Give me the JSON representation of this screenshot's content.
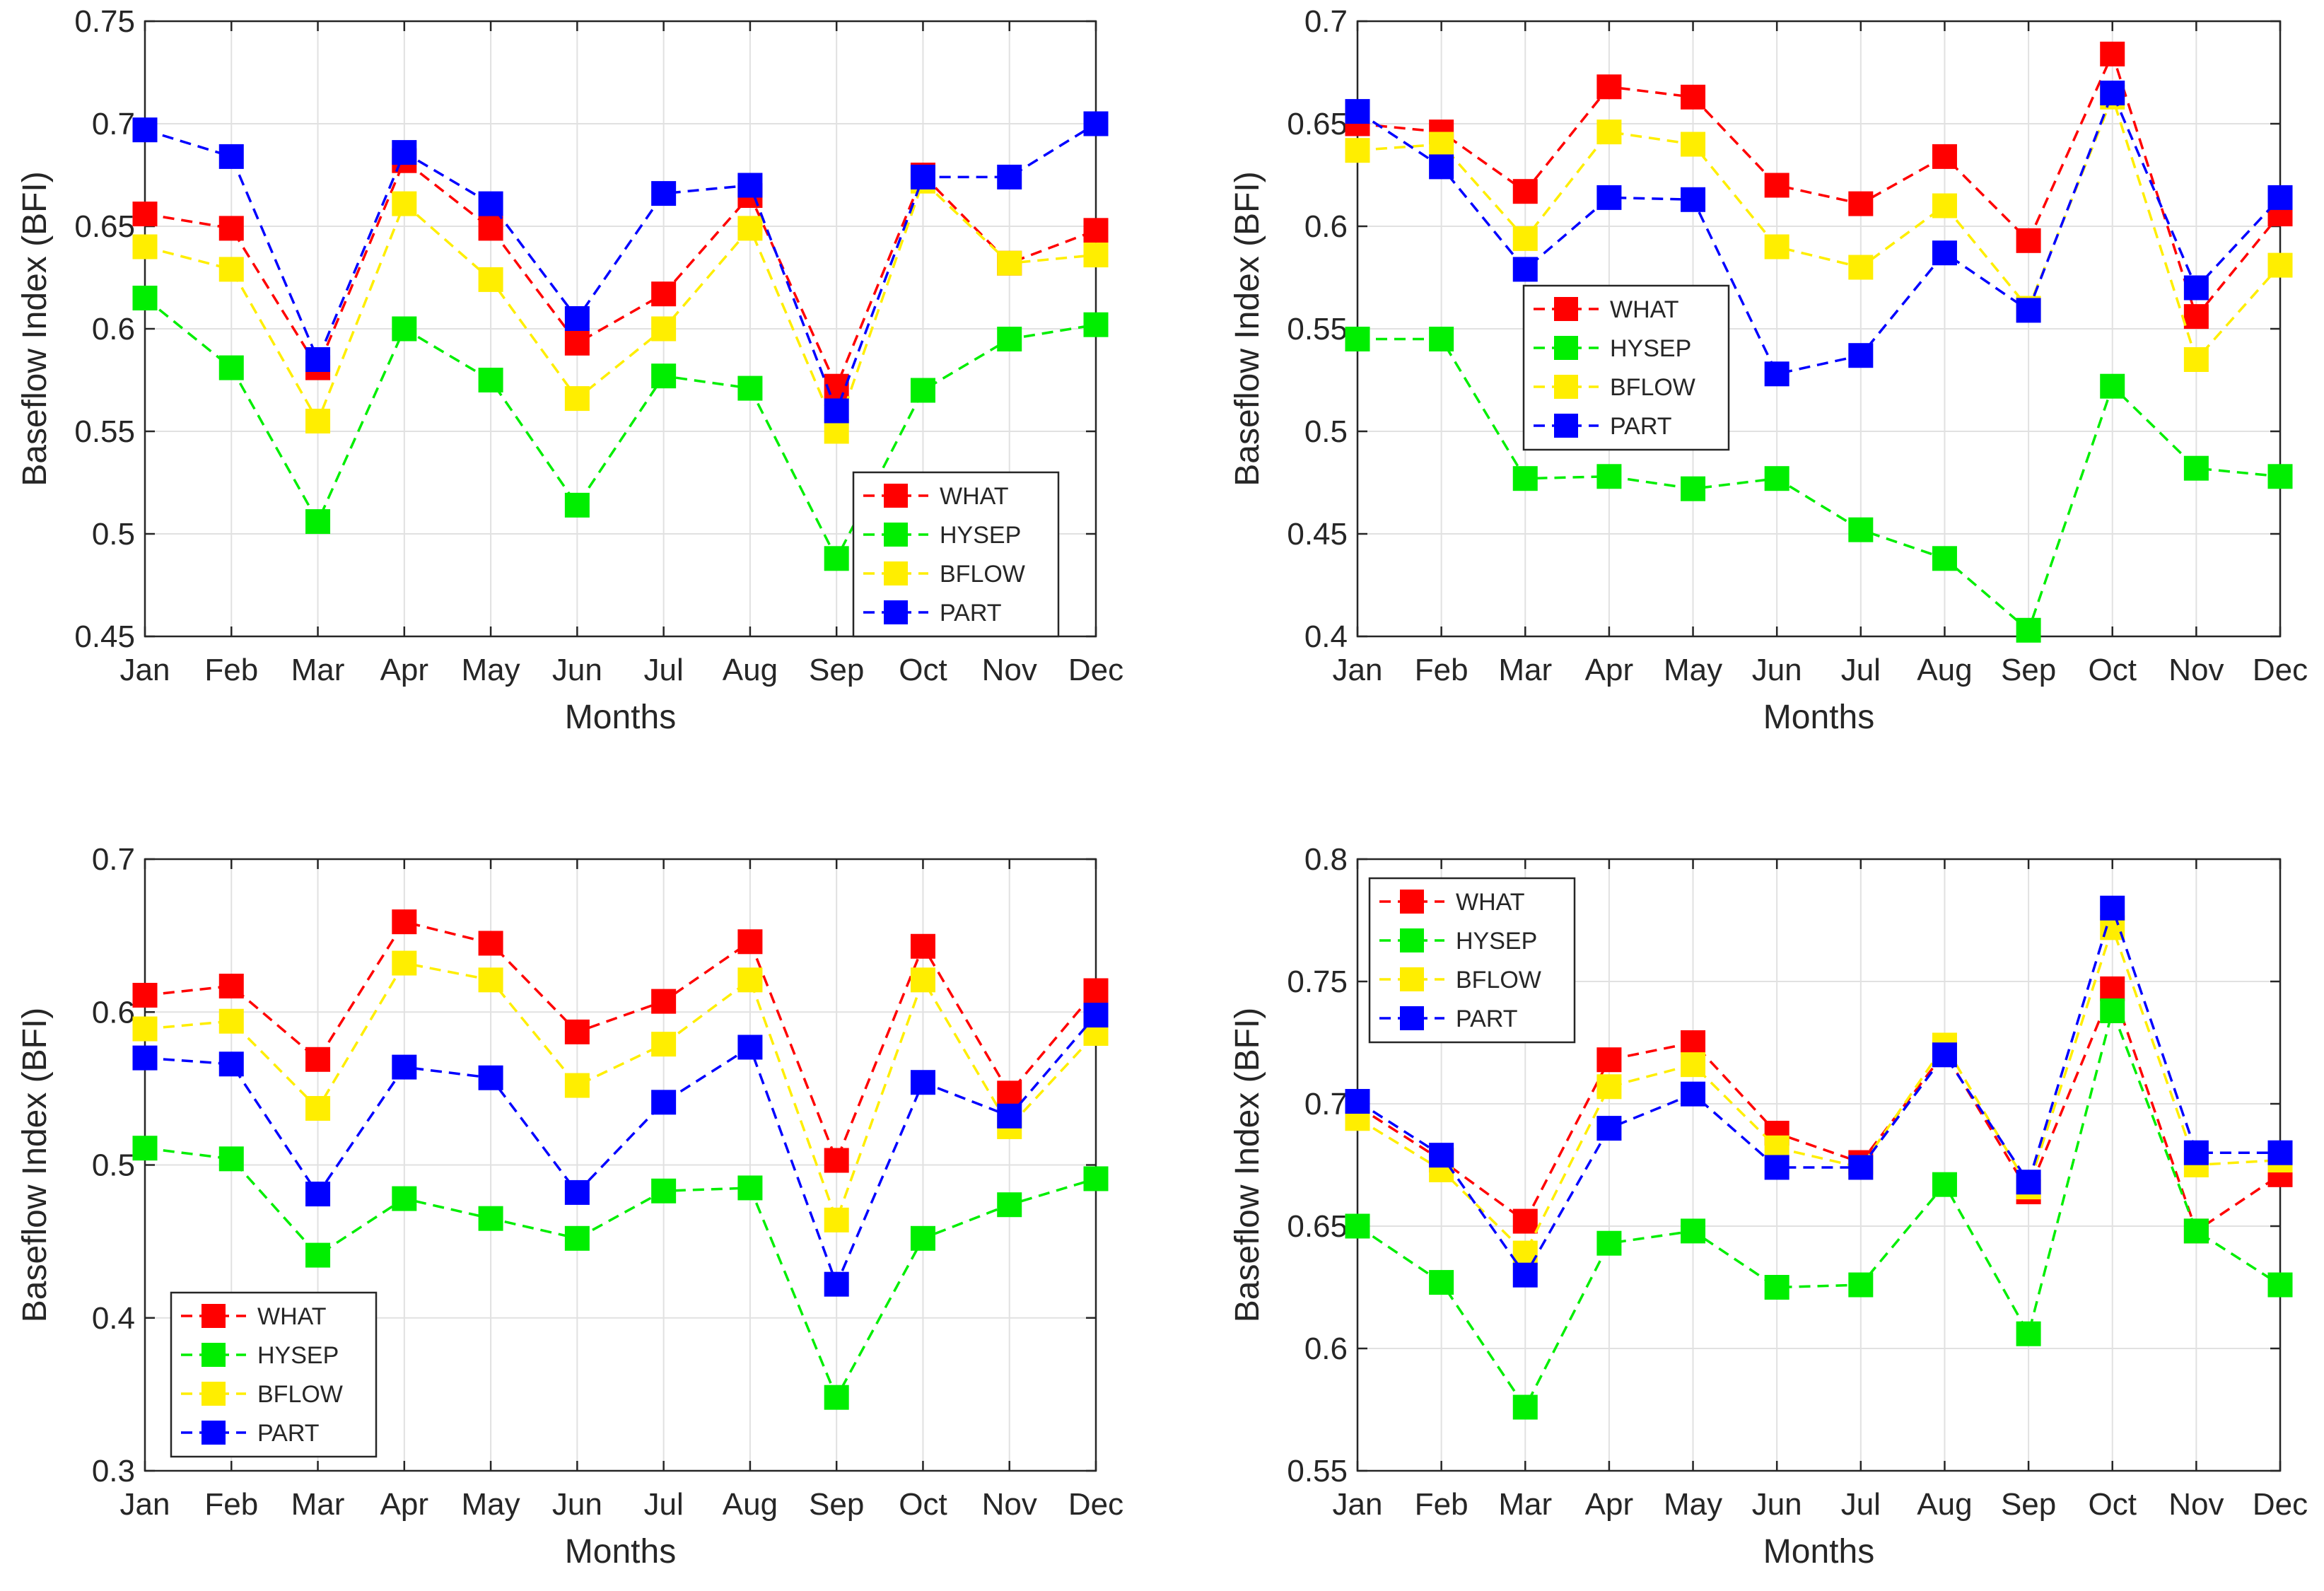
{
  "figure": {
    "legend_order": [
      "WHAT",
      "HYSEP",
      "BFLOW",
      "PART"
    ]
  },
  "chart_data": [
    {
      "type": "line",
      "panel": "top-left",
      "title": "",
      "xlabel": "Months",
      "ylabel": "Baseflow Index (BFI)",
      "categories": [
        "Jan",
        "Feb",
        "Mar",
        "Apr",
        "May",
        "Jun",
        "Jul",
        "Aug",
        "Sep",
        "Oct",
        "Nov",
        "Dec"
      ],
      "ylim": [
        0.45,
        0.75
      ],
      "yticks": [
        0.45,
        0.5,
        0.55,
        0.6,
        0.65,
        0.7,
        0.75
      ],
      "ytick_labels": [
        "0.45",
        "0.5",
        "0.55",
        "0.6",
        "0.65",
        "0.7",
        "0.75"
      ],
      "grid": true,
      "legend_position": "lower-right",
      "series": [
        {
          "name": "WHAT",
          "color": "#ff0000",
          "values": [
            0.656,
            0.649,
            0.581,
            0.682,
            0.649,
            0.593,
            0.617,
            0.665,
            0.572,
            0.675,
            0.632,
            0.648
          ]
        },
        {
          "name": "HYSEP",
          "color": "#00ee00",
          "values": [
            0.615,
            0.581,
            0.506,
            0.6,
            0.575,
            0.514,
            0.577,
            0.571,
            0.488,
            0.57,
            0.595,
            0.602
          ]
        },
        {
          "name": "BFLOW",
          "color": "#ffee00",
          "values": [
            0.64,
            0.629,
            0.555,
            0.661,
            0.624,
            0.566,
            0.6,
            0.649,
            0.55,
            0.672,
            0.632,
            0.636
          ]
        },
        {
          "name": "PART",
          "color": "#0000ff",
          "values": [
            0.697,
            0.684,
            0.585,
            0.686,
            0.661,
            0.605,
            0.666,
            0.67,
            0.56,
            0.674,
            0.674,
            0.7
          ]
        }
      ]
    },
    {
      "type": "line",
      "panel": "top-right",
      "title": "",
      "xlabel": "Months",
      "ylabel": "Baseflow Index (BFI)",
      "categories": [
        "Jan",
        "Feb",
        "Mar",
        "Apr",
        "May",
        "Jun",
        "Jul",
        "Aug",
        "Sep",
        "Oct",
        "Nov",
        "Dec"
      ],
      "ylim": [
        0.4,
        0.7
      ],
      "yticks": [
        0.4,
        0.45,
        0.5,
        0.55,
        0.6,
        0.65,
        0.7
      ],
      "ytick_labels": [
        "0.4",
        "0.45",
        "0.5",
        "0.55",
        "0.6",
        "0.65",
        "0.7"
      ],
      "grid": true,
      "legend_position": "middle-left",
      "series": [
        {
          "name": "WHAT",
          "color": "#ff0000",
          "values": [
            0.65,
            0.646,
            0.617,
            0.668,
            0.663,
            0.62,
            0.611,
            0.634,
            0.593,
            0.684,
            0.556,
            0.606
          ]
        },
        {
          "name": "HYSEP",
          "color": "#00ee00",
          "values": [
            0.545,
            0.545,
            0.477,
            0.478,
            0.472,
            0.477,
            0.452,
            0.438,
            0.403,
            0.522,
            0.482,
            0.478
          ]
        },
        {
          "name": "BFLOW",
          "color": "#ffee00",
          "values": [
            0.637,
            0.64,
            0.594,
            0.646,
            0.64,
            0.59,
            0.58,
            0.61,
            0.56,
            0.663,
            0.535,
            0.581
          ]
        },
        {
          "name": "PART",
          "color": "#0000ff",
          "values": [
            0.656,
            0.629,
            0.579,
            0.614,
            0.613,
            0.528,
            0.537,
            0.587,
            0.559,
            0.665,
            0.57,
            0.614
          ]
        }
      ]
    },
    {
      "type": "line",
      "panel": "bottom-left",
      "title": "",
      "xlabel": "Months",
      "ylabel": "Baseflow Index (BFI)",
      "categories": [
        "Jan",
        "Feb",
        "Mar",
        "Apr",
        "May",
        "Jun",
        "Jul",
        "Aug",
        "Sep",
        "Oct",
        "Nov",
        "Dec"
      ],
      "ylim": [
        0.3,
        0.7
      ],
      "yticks": [
        0.3,
        0.4,
        0.5,
        0.6,
        0.7
      ],
      "ytick_labels": [
        "0.3",
        "0.4",
        "0.5",
        "0.6",
        "0.7"
      ],
      "grid": true,
      "legend_position": "lower-left",
      "series": [
        {
          "name": "WHAT",
          "color": "#ff0000",
          "values": [
            0.611,
            0.617,
            0.569,
            0.659,
            0.645,
            0.587,
            0.607,
            0.646,
            0.503,
            0.643,
            0.547,
            0.614
          ]
        },
        {
          "name": "HYSEP",
          "color": "#00ee00",
          "values": [
            0.511,
            0.504,
            0.441,
            0.478,
            0.465,
            0.452,
            0.483,
            0.485,
            0.348,
            0.452,
            0.474,
            0.491
          ]
        },
        {
          "name": "BFLOW",
          "color": "#ffee00",
          "values": [
            0.589,
            0.594,
            0.537,
            0.632,
            0.621,
            0.552,
            0.579,
            0.621,
            0.464,
            0.621,
            0.525,
            0.586
          ]
        },
        {
          "name": "PART",
          "color": "#0000ff",
          "values": [
            0.57,
            0.566,
            0.481,
            0.564,
            0.557,
            0.482,
            0.541,
            0.577,
            0.422,
            0.554,
            0.532,
            0.598
          ]
        }
      ]
    },
    {
      "type": "line",
      "panel": "bottom-right",
      "title": "",
      "xlabel": "Months",
      "ylabel": "Baseflow Index (BFI)",
      "categories": [
        "Jan",
        "Feb",
        "Mar",
        "Apr",
        "May",
        "Jun",
        "Jul",
        "Aug",
        "Sep",
        "Oct",
        "Nov",
        "Dec"
      ],
      "ylim": [
        0.55,
        0.8
      ],
      "yticks": [
        0.55,
        0.6,
        0.65,
        0.7,
        0.75,
        0.8
      ],
      "ytick_labels": [
        "0.55",
        "0.6",
        "0.65",
        "0.7",
        "0.75",
        "0.8"
      ],
      "grid": true,
      "legend_position": "top-left",
      "series": [
        {
          "name": "WHAT",
          "color": "#ff0000",
          "values": [
            0.699,
            0.677,
            0.652,
            0.718,
            0.725,
            0.688,
            0.676,
            0.721,
            0.664,
            0.747,
            0.648,
            0.671
          ]
        },
        {
          "name": "HYSEP",
          "color": "#00ee00",
          "values": [
            0.65,
            0.627,
            0.576,
            0.643,
            0.648,
            0.625,
            0.626,
            0.667,
            0.606,
            0.738,
            0.648,
            0.626
          ]
        },
        {
          "name": "BFLOW",
          "color": "#ffee00",
          "values": [
            0.694,
            0.673,
            0.639,
            0.707,
            0.716,
            0.682,
            0.674,
            0.724,
            0.666,
            0.772,
            0.675,
            0.677
          ]
        },
        {
          "name": "PART",
          "color": "#0000ff",
          "values": [
            0.701,
            0.679,
            0.63,
            0.69,
            0.704,
            0.674,
            0.674,
            0.72,
            0.668,
            0.78,
            0.68,
            0.68
          ]
        }
      ]
    }
  ]
}
